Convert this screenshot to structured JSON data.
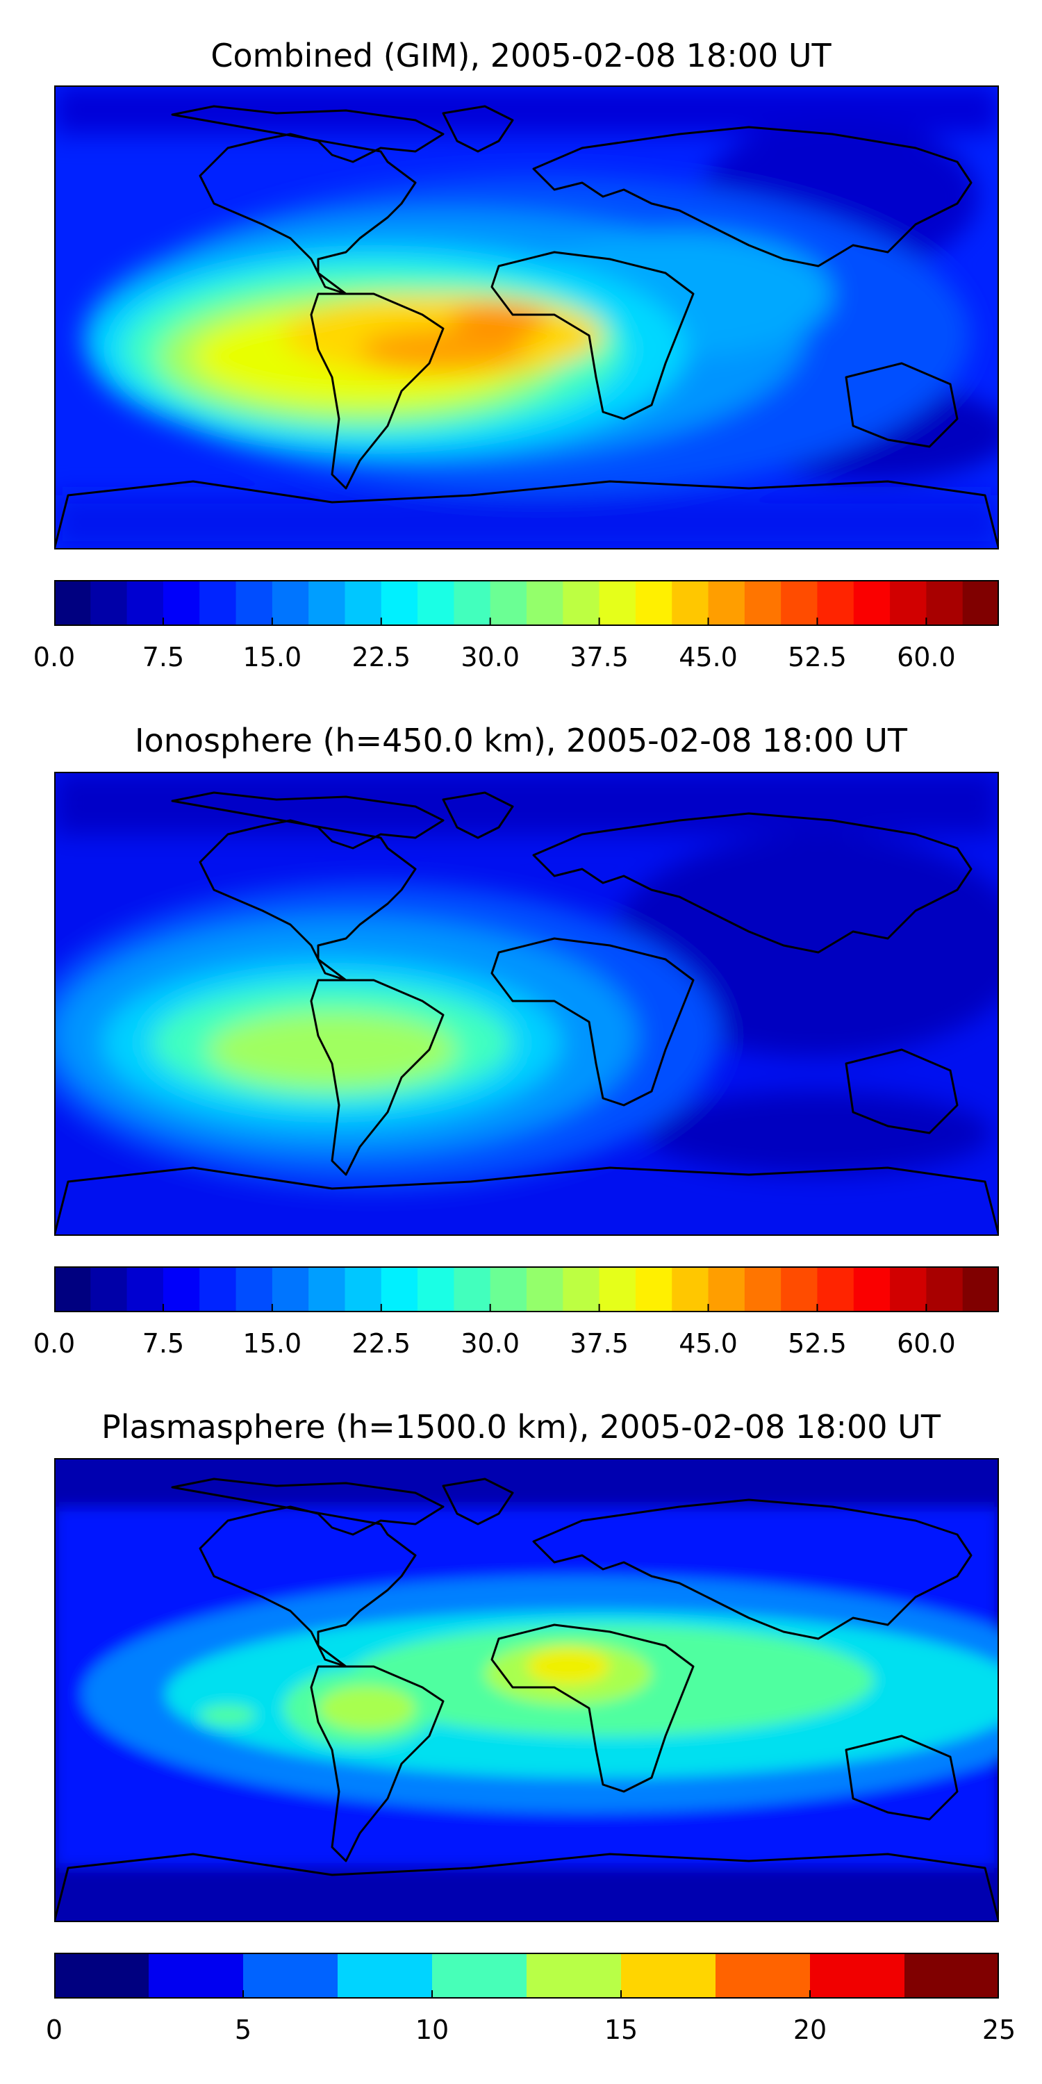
{
  "panels": [
    {
      "title": "Combined (GIM), 2005-02-08 18:00 UT",
      "colorbar": {
        "min": 0,
        "max": 65,
        "levels": 26,
        "tick_labels": [
          "0.0",
          "7.5",
          "15.0",
          "22.5",
          "30.0",
          "37.5",
          "45.0",
          "52.5",
          "60.0"
        ]
      }
    },
    {
      "title": "Ionosphere  (h=450.0 km), 2005-02-08 18:00 UT",
      "colorbar": {
        "min": 0,
        "max": 65,
        "levels": 26,
        "tick_labels": [
          "0.0",
          "7.5",
          "15.0",
          "22.5",
          "30.0",
          "37.5",
          "45.0",
          "52.5",
          "60.0"
        ]
      }
    },
    {
      "title": "Plasmasphere (h=1500.0 km), 2005-02-08 18:00 UT",
      "colorbar": {
        "min": 0,
        "max": 25,
        "levels": 10,
        "tick_labels": [
          "0",
          "5",
          "10",
          "15",
          "20",
          "25"
        ]
      }
    }
  ],
  "colormap": "jet",
  "projection": "PlateCarree"
}
